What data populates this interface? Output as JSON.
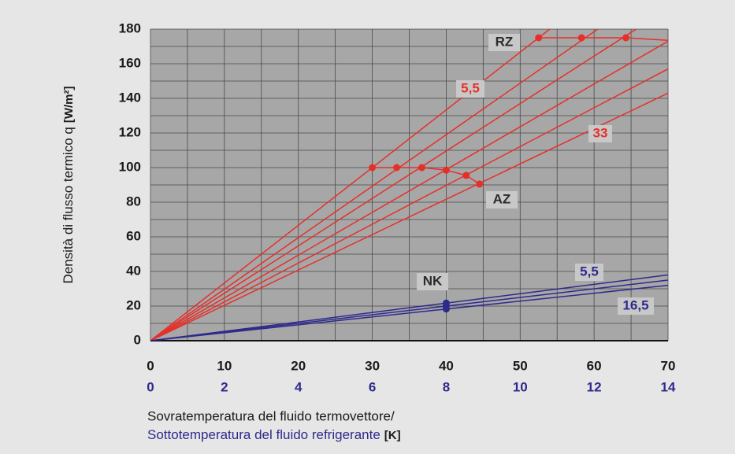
{
  "chart_data": {
    "type": "line",
    "y_label": "Densità di flusso termico q",
    "y_label_unit": "[W/m²]",
    "x_label": "Sovratemperatura del fluido termovettore/",
    "x2_label": "Sottotemperatura del fluido refrigerante",
    "x_label_unit": "[K]",
    "xlim": [
      0,
      70
    ],
    "ylim": [
      0,
      180
    ],
    "xticks": [
      0,
      10,
      20,
      30,
      40,
      50,
      60,
      70
    ],
    "yticks": [
      0,
      20,
      40,
      60,
      80,
      100,
      120,
      140,
      160,
      180
    ],
    "xminorticks": [
      5,
      15,
      25,
      35,
      45,
      55,
      65
    ],
    "yminorticks": [
      10,
      30,
      50,
      70,
      90,
      110,
      130,
      150,
      170
    ],
    "x2lim": [
      0,
      14
    ],
    "x2ticks": [
      0,
      2,
      4,
      6,
      8,
      10,
      12,
      14
    ],
    "grid": true,
    "series": [
      {
        "color": "#e5302a",
        "x": [
          0,
          54
        ],
        "values": [
          0,
          180
        ]
      },
      {
        "color": "#e5302a",
        "x": [
          0,
          60.5
        ],
        "values": [
          0,
          180
        ]
      },
      {
        "color": "#e5302a",
        "x": [
          0,
          65.7
        ],
        "values": [
          0,
          180
        ]
      },
      {
        "color": "#e5302a",
        "x": [
          0,
          70
        ],
        "values": [
          0,
          173
        ]
      },
      {
        "color": "#e5302a",
        "x": [
          0,
          70
        ],
        "values": [
          0,
          157
        ]
      },
      {
        "color": "#e5302a",
        "x": [
          0,
          70
        ],
        "values": [
          0,
          143
        ]
      },
      {
        "name": "AZ",
        "color": "#e5302a",
        "x": [
          30,
          33.3,
          36.7,
          40,
          42.7,
          44.5
        ],
        "values": [
          100,
          100,
          100,
          98.5,
          95.5,
          90.5
        ],
        "markers": [
          true,
          true,
          true,
          true,
          true,
          true
        ]
      },
      {
        "name": "RZ",
        "color": "#e5302a",
        "x": [
          52.5,
          58.3,
          64.3,
          70
        ],
        "values": [
          175,
          175,
          175,
          173.5
        ],
        "markers": [
          true,
          true,
          true,
          false
        ]
      },
      {
        "color": "#2e2a8c",
        "axis": "x2",
        "x": [
          0,
          14
        ],
        "values": [
          0,
          38
        ]
      },
      {
        "color": "#2e2a8c",
        "axis": "x2",
        "x": [
          0,
          14
        ],
        "values": [
          0,
          35
        ]
      },
      {
        "color": "#2e2a8c",
        "axis": "x2",
        "x": [
          0,
          14
        ],
        "values": [
          0,
          32
        ]
      },
      {
        "name": "NK",
        "color": "#2e2a8c",
        "axis": "x2",
        "x": [
          8,
          8,
          8
        ],
        "values": [
          21.7,
          20,
          18.3
        ],
        "markers": [
          true,
          true,
          true
        ]
      }
    ],
    "annotations": [
      {
        "text": "5,5",
        "color": "#e5302a"
      },
      {
        "text": "33",
        "color": "#e5302a"
      },
      {
        "text": "5,5",
        "color": "#2e2a8c"
      },
      {
        "text": "16,5",
        "color": "#2e2a8c"
      }
    ],
    "x_color": "#1a1a1a",
    "x2_color": "#2e2a8c"
  }
}
